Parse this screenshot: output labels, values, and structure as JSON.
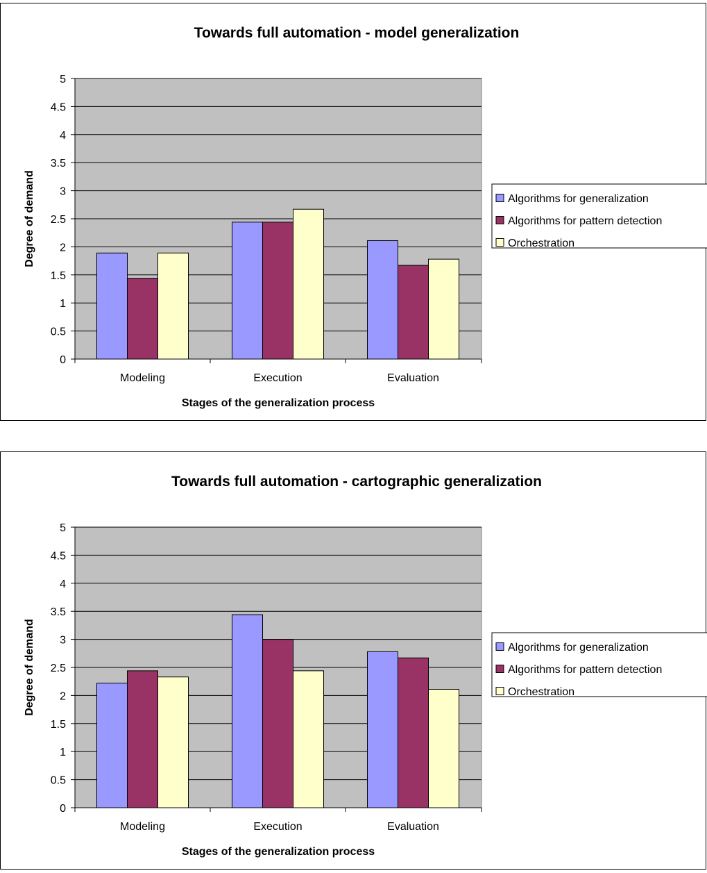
{
  "colors": {
    "plot_background": "#c0c0c0",
    "gridline": "#000000",
    "series": [
      "#9999ff",
      "#993366",
      "#ffffcc"
    ]
  },
  "chart_data": [
    {
      "type": "bar",
      "title": "Towards full automation - model generalization",
      "xlabel": "Stages of the generalization process",
      "ylabel": "Degree of demand",
      "ylim": [
        0,
        5
      ],
      "yticks": [
        "0",
        "0.5",
        "1",
        "1.5",
        "2",
        "2.5",
        "3",
        "3.5",
        "4",
        "4.5",
        "5"
      ],
      "grid": true,
      "legend_position": "right",
      "categories": [
        "Modeling",
        "Execution",
        "Evaluation"
      ],
      "series": [
        {
          "name": "Algorithms for generalization",
          "values": [
            1.89,
            2.44,
            2.11
          ]
        },
        {
          "name": "Algorithms for pattern detection",
          "values": [
            1.44,
            2.44,
            1.67
          ]
        },
        {
          "name": "Orchestration",
          "values": [
            1.89,
            2.67,
            1.78
          ]
        }
      ]
    },
    {
      "type": "bar",
      "title": "Towards full automation - cartographic generalization",
      "xlabel": "Stages of the generalization process",
      "ylabel": "Degree of demand",
      "ylim": [
        0,
        5
      ],
      "yticks": [
        "0",
        "0.5",
        "1",
        "1.5",
        "2",
        "2.5",
        "3",
        "3.5",
        "4",
        "4.5",
        "5"
      ],
      "grid": true,
      "legend_position": "right",
      "categories": [
        "Modeling",
        "Execution",
        "Evaluation"
      ],
      "series": [
        {
          "name": "Algorithms for generalization",
          "values": [
            2.22,
            3.44,
            2.78
          ]
        },
        {
          "name": "Algorithms for pattern detection",
          "values": [
            2.44,
            3.0,
            2.67
          ]
        },
        {
          "name": "Orchestration",
          "values": [
            2.33,
            2.44,
            2.11
          ]
        }
      ]
    }
  ]
}
